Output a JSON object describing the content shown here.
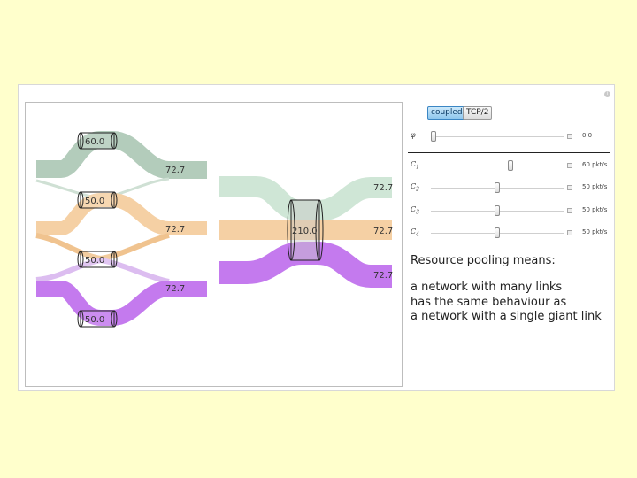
{
  "mode_buttons": {
    "coupled": "coupled",
    "tcp": "TCP/2"
  },
  "param": {
    "label": "φ",
    "value_text": "0.0",
    "value": 0.0,
    "range": [
      0,
      1
    ]
  },
  "capacities": [
    {
      "sym": "C",
      "sub": "1",
      "value_text": "60 pkt/s",
      "value": 60
    },
    {
      "sym": "C",
      "sub": "2",
      "value_text": "50 pkt/s",
      "value": 50
    },
    {
      "sym": "C",
      "sub": "3",
      "value_text": "50 pkt/s",
      "value": 50
    },
    {
      "sym": "C",
      "sub": "4",
      "value_text": "50 pkt/s",
      "value": 50
    }
  ],
  "capacity_range": [
    0,
    100
  ],
  "description": {
    "heading": "Resource pooling means:",
    "line1": "a network with many links",
    "line2": "has the same behaviour as",
    "line3": "a network with a single giant link"
  },
  "left_network": {
    "links": [
      "60.0",
      "50.0",
      "50.0",
      "50.0"
    ],
    "flows": [
      "72.7",
      "72.7",
      "72.7"
    ]
  },
  "right_network": {
    "link": "210.0",
    "flows": [
      "72.7",
      "72.7",
      "72.7"
    ]
  },
  "colors": {
    "green": "#b3ccbb",
    "orange": "#f5d0a4",
    "purple": "#c47aee",
    "lavender": "#dcbdf0",
    "background": "#ffffcc"
  }
}
